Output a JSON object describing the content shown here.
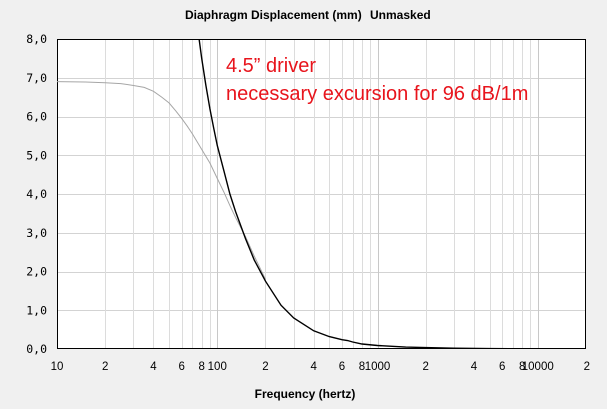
{
  "chart_data": {
    "type": "line",
    "title": "Diaphragm Displacement (mm)",
    "mode": "Unmasked",
    "xlabel": "Frequency (hertz)",
    "ylabel": "",
    "x_scale": "log",
    "xlim": [
      10,
      20000
    ],
    "ylim": [
      0,
      8
    ],
    "grid": true,
    "y_ticks": [
      "0,0",
      "1,0",
      "2,0",
      "3,0",
      "4,0",
      "5,0",
      "6,0",
      "7,0",
      "8,0"
    ],
    "x_tick_labels": [
      {
        "x": 10,
        "label": "10"
      },
      {
        "x": 20,
        "label": "2"
      },
      {
        "x": 40,
        "label": "4"
      },
      {
        "x": 60,
        "label": "6"
      },
      {
        "x": 80,
        "label": "8"
      },
      {
        "x": 100,
        "label": "100"
      },
      {
        "x": 200,
        "label": "2"
      },
      {
        "x": 400,
        "label": "4"
      },
      {
        "x": 600,
        "label": "6"
      },
      {
        "x": 800,
        "label": "8"
      },
      {
        "x": 1000,
        "label": "1000"
      },
      {
        "x": 2000,
        "label": "2"
      },
      {
        "x": 4000,
        "label": "4"
      },
      {
        "x": 6000,
        "label": "6"
      },
      {
        "x": 8000,
        "label": "8"
      },
      {
        "x": 10000,
        "label": "10000"
      },
      {
        "x": 20000,
        "label": "2"
      }
    ],
    "annotations": [
      "4.5” driver",
      "necessary excursion for 96 dB/1m"
    ],
    "series": [
      {
        "color": "#000000",
        "x": [
          77,
          80,
          85,
          90,
          95,
          100,
          110,
          120,
          130,
          150,
          170,
          200,
          250,
          300,
          400,
          500,
          600,
          650,
          700,
          800,
          1000,
          1500,
          2000,
          3000,
          5000,
          10000,
          20000
        ],
        "y": [
          8.0,
          7.5,
          6.8,
          6.2,
          5.7,
          5.25,
          4.6,
          4.0,
          3.55,
          2.85,
          2.3,
          1.75,
          1.13,
          0.8,
          0.47,
          0.32,
          0.24,
          0.22,
          0.18,
          0.13,
          0.09,
          0.05,
          0.035,
          0.02,
          0.01,
          0.005,
          0.002
        ]
      },
      {
        "color": "#a6a6a6",
        "x": [
          10,
          15,
          20,
          25,
          30,
          35,
          40,
          45,
          50,
          55,
          60,
          65,
          70,
          80,
          90,
          100,
          110,
          120,
          130,
          150,
          170,
          200
        ],
        "y": [
          6.9,
          6.89,
          6.87,
          6.85,
          6.8,
          6.75,
          6.65,
          6.5,
          6.35,
          6.15,
          5.95,
          5.75,
          5.55,
          5.15,
          4.8,
          4.4,
          4.05,
          3.7,
          3.4,
          2.9,
          2.4,
          1.8
        ]
      }
    ]
  }
}
